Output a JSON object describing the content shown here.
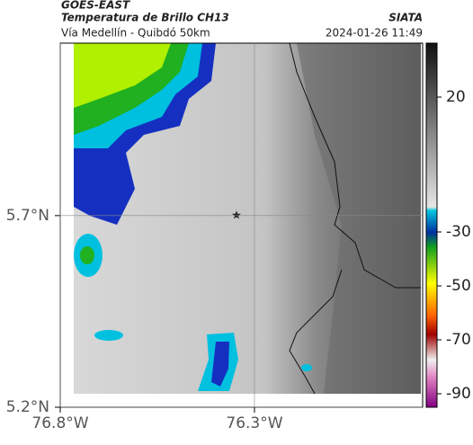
{
  "header": {
    "source": "GOES-EAST",
    "title": "Temperatura de Brillo CH13",
    "agency": "SIATA",
    "subtitle": "Vía Medellín - Quibdó 50km",
    "timestamp": "2024-01-26 11:49"
  },
  "map": {
    "lat_lim": [
      5.2,
      6.15
    ],
    "lon_lim": [
      -76.8,
      -75.867
    ],
    "lat_ticks": [
      {
        "value": 5.7,
        "label": "5.7°N"
      },
      {
        "value": 5.2,
        "label": "5.2°N"
      }
    ],
    "lon_ticks": [
      {
        "value": -76.8,
        "label": "76.8°W"
      },
      {
        "value": -76.3,
        "label": "76.3°W"
      }
    ]
  },
  "colorbar": {
    "lim": [
      -95,
      40
    ],
    "ticks": [
      20,
      -30,
      -50,
      -70,
      -90
    ]
  }
}
